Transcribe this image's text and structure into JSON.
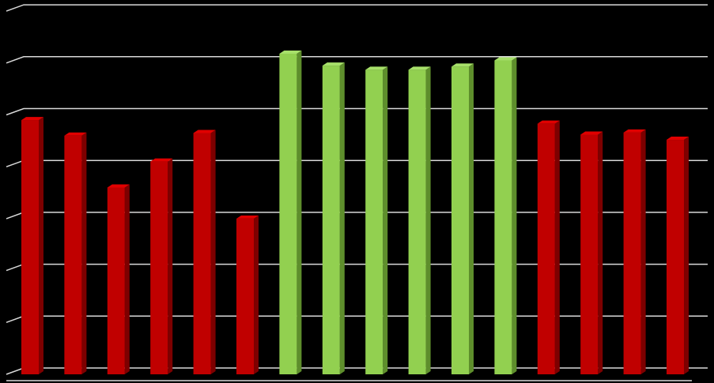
{
  "chart_data": {
    "type": "bar",
    "style": "3d-column",
    "grid": true,
    "legend": "none",
    "background_color": "#000000",
    "gridline_color": "#d9d9d9",
    "ylim": [
      0,
      7
    ],
    "gridline_values": [
      0,
      1,
      2,
      3,
      4,
      5,
      6,
      7
    ],
    "bars": [
      {
        "value": 4.9,
        "color": "red"
      },
      {
        "value": 4.6,
        "color": "red"
      },
      {
        "value": 3.6,
        "color": "red"
      },
      {
        "value": 4.1,
        "color": "red"
      },
      {
        "value": 4.65,
        "color": "red"
      },
      {
        "value": 3.0,
        "color": "red"
      },
      {
        "value": 6.18,
        "color": "green"
      },
      {
        "value": 5.95,
        "color": "green"
      },
      {
        "value": 5.87,
        "color": "green"
      },
      {
        "value": 5.87,
        "color": "green"
      },
      {
        "value": 5.93,
        "color": "green"
      },
      {
        "value": 6.05,
        "color": "green"
      },
      {
        "value": 4.83,
        "color": "red"
      },
      {
        "value": 4.62,
        "color": "red"
      },
      {
        "value": 4.66,
        "color": "red"
      },
      {
        "value": 4.52,
        "color": "red"
      }
    ],
    "colors": {
      "red": {
        "front": "#c00000",
        "side": "#7d0000",
        "top": "#e00000"
      },
      "green": {
        "front": "#92d050",
        "side": "#5e8e2c",
        "top": "#a7e06a"
      }
    }
  }
}
